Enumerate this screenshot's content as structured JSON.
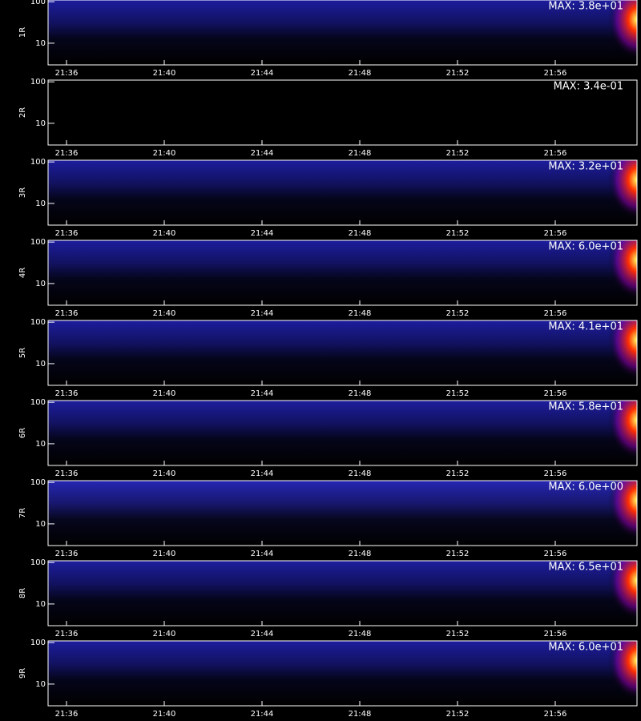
{
  "chart_data": [
    {
      "type": "spectrogram",
      "ylabel": "1R",
      "annotation": "MAX: 3.8e+01",
      "color": "#2020b0",
      "categories": [
        "21:36",
        "21:40",
        "21:44",
        "21:48",
        "21:52",
        "21:56"
      ],
      "ylim": [
        3,
        110
      ],
      "yticks": [
        10,
        100
      ],
      "log_y": true
    },
    {
      "type": "spectrogram",
      "ylabel": "2R",
      "annotation": "MAX: 3.4e-01",
      "color": "#000000",
      "categories": [
        "21:36",
        "21:40",
        "21:44",
        "21:48",
        "21:52",
        "21:56"
      ],
      "ylim": [
        3,
        110
      ],
      "yticks": [
        10,
        100
      ],
      "log_y": true
    },
    {
      "type": "spectrogram",
      "ylabel": "3R",
      "annotation": "MAX: 3.2e+01",
      "color": "#2020b0",
      "categories": [
        "21:36",
        "21:40",
        "21:44",
        "21:48",
        "21:52",
        "21:56"
      ],
      "ylim": [
        3,
        110
      ],
      "yticks": [
        10,
        100
      ],
      "log_y": true
    },
    {
      "type": "spectrogram",
      "ylabel": "4R",
      "annotation": "MAX: 6.0e+01",
      "color": "#2020b0",
      "categories": [
        "21:36",
        "21:40",
        "21:44",
        "21:48",
        "21:52",
        "21:56"
      ],
      "ylim": [
        3,
        110
      ],
      "yticks": [
        10,
        100
      ],
      "log_y": true
    },
    {
      "type": "spectrogram",
      "ylabel": "5R",
      "annotation": "MAX: 4.1e+01",
      "color": "#2020b0",
      "categories": [
        "21:36",
        "21:40",
        "21:44",
        "21:48",
        "21:52",
        "21:56"
      ],
      "ylim": [
        3,
        110
      ],
      "yticks": [
        10,
        100
      ],
      "log_y": true
    },
    {
      "type": "spectrogram",
      "ylabel": "6R",
      "annotation": "MAX: 5.8e+01",
      "color": "#2020b0",
      "categories": [
        "21:36",
        "21:40",
        "21:44",
        "21:48",
        "21:52",
        "21:56"
      ],
      "ylim": [
        3,
        110
      ],
      "yticks": [
        10,
        100
      ],
      "log_y": true
    },
    {
      "type": "spectrogram",
      "ylabel": "7R",
      "annotation": "MAX: 6.0e+00",
      "color": "#2a2ac8",
      "categories": [
        "21:36",
        "21:40",
        "21:44",
        "21:48",
        "21:52",
        "21:56"
      ],
      "ylim": [
        3,
        110
      ],
      "yticks": [
        10,
        100
      ],
      "log_y": true
    },
    {
      "type": "spectrogram",
      "ylabel": "8R",
      "annotation": "MAX: 6.5e+01",
      "color": "#2020b0",
      "categories": [
        "21:36",
        "21:40",
        "21:44",
        "21:48",
        "21:52",
        "21:56"
      ],
      "ylim": [
        3,
        110
      ],
      "yticks": [
        10,
        100
      ],
      "log_y": true
    },
    {
      "type": "spectrogram",
      "ylabel": "9R",
      "annotation": "MAX: 6.0e+01",
      "color": "#2020b0",
      "categories": [
        "21:36",
        "21:40",
        "21:44",
        "21:48",
        "21:52",
        "21:56"
      ],
      "ylim": [
        3,
        110
      ],
      "yticks": [
        10,
        100
      ],
      "log_y": true
    }
  ]
}
